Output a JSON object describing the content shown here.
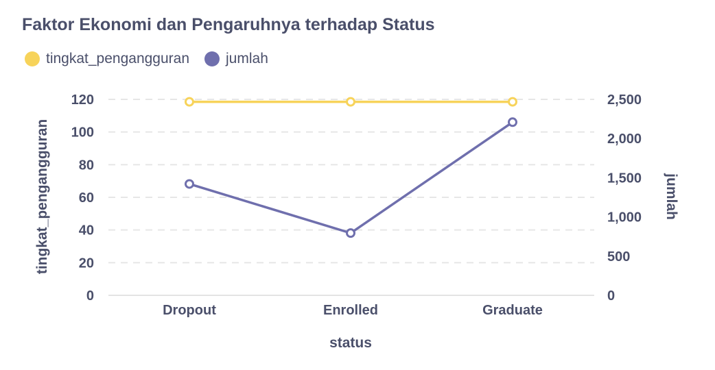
{
  "title": "Faktor Ekonomi dan Pengaruhnya terhadap Status",
  "colors": {
    "series1": "#f7d35a",
    "series2": "#6f6fad",
    "text": "#4a4f6a",
    "grid": "#e6e6e6"
  },
  "chart_data": {
    "type": "line",
    "title": "Faktor Ekonomi dan Pengaruhnya terhadap Status",
    "xlabel": "status",
    "ylabel_left": "tingkat_pengangguran",
    "ylabel_right": "jumlah",
    "categories": [
      "Dropout",
      "Enrolled",
      "Graduate"
    ],
    "ylim_left": [
      0,
      120
    ],
    "ylim_right": [
      0,
      2500
    ],
    "yticks_left": [
      "0",
      "20",
      "40",
      "60",
      "80",
      "100",
      "120"
    ],
    "yticks_right": [
      "0",
      "500",
      "1,000",
      "1,500",
      "2,000",
      "2,500"
    ],
    "grid": true,
    "legend_position": "top-left",
    "series": [
      {
        "name": "tingkat_pengangguran",
        "axis": "left",
        "values": [
          118.5,
          118.5,
          118.5
        ]
      },
      {
        "name": "jumlah",
        "axis": "right",
        "values": [
          1421,
          794,
          2209
        ]
      }
    ]
  }
}
